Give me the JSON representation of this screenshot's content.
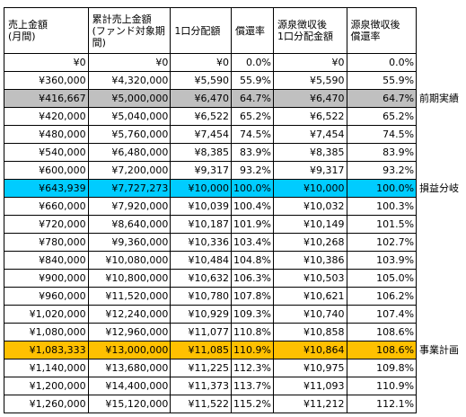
{
  "table": {
    "header": [
      "売上金額\n(月間)",
      "累計売上金額\n(ファンド対象期間)",
      "1口分配額",
      "償還率",
      "源泉徴収後\n1口分配金額",
      "源泉徴収後\n償還率"
    ],
    "rows": [
      {
        "cells": [
          "¥0",
          "¥0",
          "¥0",
          "0.0%",
          "¥0",
          "0.0%"
        ]
      },
      {
        "cells": [
          "¥360,000",
          "¥4,320,000",
          "¥5,590",
          "55.9%",
          "¥5,590",
          "55.9%"
        ]
      },
      {
        "cells": [
          "¥416,667",
          "¥5,000,000",
          "¥6,470",
          "64.7%",
          "¥6,470",
          "64.7%"
        ],
        "note": "前期実績",
        "highlight": "#c0c0c0"
      },
      {
        "cells": [
          "¥420,000",
          "¥5,040,000",
          "¥6,522",
          "65.2%",
          "¥6,522",
          "65.2%"
        ]
      },
      {
        "cells": [
          "¥480,000",
          "¥5,760,000",
          "¥7,454",
          "74.5%",
          "¥7,454",
          "74.5%"
        ]
      },
      {
        "cells": [
          "¥540,000",
          "¥6,480,000",
          "¥8,385",
          "83.9%",
          "¥8,385",
          "83.9%"
        ]
      },
      {
        "cells": [
          "¥600,000",
          "¥7,200,000",
          "¥9,317",
          "93.2%",
          "¥9,317",
          "93.2%"
        ]
      },
      {
        "cells": [
          "¥643,939",
          "¥7,727,273",
          "¥10,000",
          "100.0%",
          "¥10,000",
          "100.0%"
        ],
        "note": "損益分岐",
        "highlight": "#00ccff"
      },
      {
        "cells": [
          "¥660,000",
          "¥7,920,000",
          "¥10,039",
          "100.4%",
          "¥10,032",
          "100.3%"
        ]
      },
      {
        "cells": [
          "¥720,000",
          "¥8,640,000",
          "¥10,187",
          "101.9%",
          "¥10,149",
          "101.5%"
        ]
      },
      {
        "cells": [
          "¥780,000",
          "¥9,360,000",
          "¥10,336",
          "103.4%",
          "¥10,268",
          "102.7%"
        ]
      },
      {
        "cells": [
          "¥840,000",
          "¥10,080,000",
          "¥10,484",
          "104.8%",
          "¥10,386",
          "103.9%"
        ]
      },
      {
        "cells": [
          "¥900,000",
          "¥10,800,000",
          "¥10,632",
          "106.3%",
          "¥10,503",
          "105.0%"
        ]
      },
      {
        "cells": [
          "¥960,000",
          "¥11,520,000",
          "¥10,780",
          "107.8%",
          "¥10,621",
          "106.2%"
        ]
      },
      {
        "cells": [
          "¥1,020,000",
          "¥12,240,000",
          "¥10,929",
          "109.3%",
          "¥10,740",
          "107.4%"
        ]
      },
      {
        "cells": [
          "¥1,080,000",
          "¥12,960,000",
          "¥11,077",
          "110.8%",
          "¥10,858",
          "108.6%"
        ]
      },
      {
        "cells": [
          "¥1,083,333",
          "¥13,000,000",
          "¥11,085",
          "110.9%",
          "¥10,864",
          "108.6%"
        ],
        "note": "事業計画",
        "highlight": "#ffc000"
      },
      {
        "cells": [
          "¥1,140,000",
          "¥13,680,000",
          "¥11,225",
          "112.3%",
          "¥10,975",
          "109.8%"
        ]
      },
      {
        "cells": [
          "¥1,200,000",
          "¥14,400,000",
          "¥11,373",
          "113.7%",
          "¥11,093",
          "110.9%"
        ]
      },
      {
        "cells": [
          "¥1,260,000",
          "¥15,120,000",
          "¥11,522",
          "115.2%",
          "¥11,212",
          "112.1%"
        ]
      }
    ]
  }
}
